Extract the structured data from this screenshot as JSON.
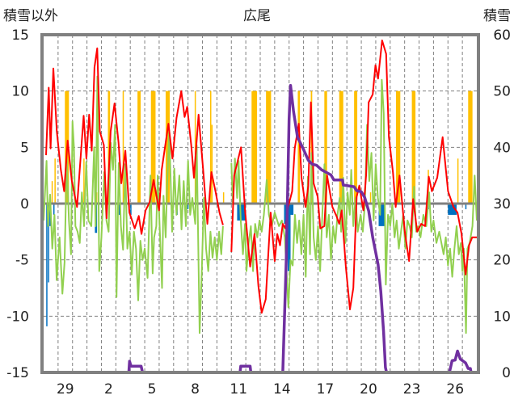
{
  "chart_data": {
    "type": "line",
    "title": "広尾",
    "ylabel_left": "積雪以外",
    "ylabel_right": "積雪",
    "ylim_left": [
      -15,
      15
    ],
    "ylim_right": [
      0,
      60
    ],
    "yticks_left": [
      "15",
      "10",
      "5",
      "0",
      "-5",
      "-10",
      "-15"
    ],
    "yticks_right": [
      "60",
      "50",
      "40",
      "30",
      "20",
      "10",
      "0"
    ],
    "x_range_days": [
      0,
      30
    ],
    "xticks": [
      {
        "label": "29",
        "day": 1.5
      },
      {
        "label": "2",
        "day": 4.5
      },
      {
        "label": "5",
        "day": 7.5
      },
      {
        "label": "8",
        "day": 10.5
      },
      {
        "label": "11",
        "day": 13.5
      },
      {
        "label": "14",
        "day": 16.5
      },
      {
        "label": "17",
        "day": 19.5
      },
      {
        "label": "20",
        "day": 22.5
      },
      {
        "label": "23",
        "day": 25.5
      },
      {
        "label": "26",
        "day": 28.5
      }
    ],
    "grid": true,
    "colors": {
      "temp": "#ff0000",
      "green": "#92d050",
      "snow": "#7030a0",
      "sun": "#ffc000",
      "precip": "#0070c0",
      "frame": "#808080"
    },
    "series_red": [
      [
        0.17,
        4.3
      ],
      [
        0.35,
        10.3
      ],
      [
        0.48,
        4.9
      ],
      [
        0.67,
        12
      ],
      [
        0.91,
        6.4
      ],
      [
        1.19,
        3
      ],
      [
        1.42,
        1.1
      ],
      [
        1.66,
        5.6
      ],
      [
        1.94,
        2.1
      ],
      [
        2.31,
        -0.3
      ],
      [
        2.77,
        7.8
      ],
      [
        2.96,
        4
      ],
      [
        3.15,
        7.9
      ],
      [
        3.33,
        4.7
      ],
      [
        3.52,
        12.1
      ],
      [
        3.71,
        13.8
      ],
      [
        3.89,
        6.4
      ],
      [
        4.17,
        5.2
      ],
      [
        4.36,
        -1.3
      ],
      [
        4.64,
        6.4
      ],
      [
        4.91,
        8.9
      ],
      [
        5.19,
        5.4
      ],
      [
        5.38,
        1.8
      ],
      [
        5.66,
        4.7
      ],
      [
        5.94,
        -0.8
      ],
      [
        6.31,
        -2.2
      ],
      [
        6.59,
        -1.1
      ],
      [
        6.78,
        -2.7
      ],
      [
        7.06,
        -0.6
      ],
      [
        7.34,
        0.1
      ],
      [
        7.62,
        2.1
      ],
      [
        7.99,
        -0.6
      ],
      [
        8.18,
        3
      ],
      [
        8.64,
        7.1
      ],
      [
        8.92,
        4
      ],
      [
        9.2,
        7.6
      ],
      [
        9.53,
        10
      ],
      [
        9.76,
        7.7
      ],
      [
        9.94,
        8.6
      ],
      [
        10.22,
        5.2
      ],
      [
        10.41,
        2.3
      ],
      [
        10.73,
        7.9
      ],
      [
        11.06,
        2.8
      ],
      [
        11.34,
        -1.8
      ],
      [
        11.62,
        2.8
      ],
      [
        11.9,
        1.1
      ],
      [
        12.18,
        -0.8
      ],
      [
        12.42,
        -1.9
      ],
      null,
      [
        13.0,
        -4.3
      ],
      [
        13.2,
        2.5
      ],
      [
        13.67,
        5
      ],
      [
        13.95,
        -0.6
      ],
      [
        14.3,
        -5.6
      ],
      [
        14.6,
        -2.7
      ],
      [
        14.87,
        -7.3
      ],
      [
        15.1,
        -9.7
      ],
      [
        15.38,
        -8.5
      ],
      [
        15.72,
        -0.8
      ],
      [
        16.0,
        -5.1
      ],
      [
        16.18,
        -2.7
      ],
      [
        16.37,
        -3.7
      ],
      [
        16.56,
        -1.8
      ],
      [
        16.74,
        -2.2
      ],
      [
        16.93,
        -0.3
      ],
      [
        17.21,
        1.1
      ],
      [
        17.39,
        4.9
      ],
      [
        17.67,
        7.1
      ],
      [
        17.86,
        2.3
      ],
      [
        18.14,
        -0.3
      ],
      [
        18.33,
        1.6
      ],
      [
        18.51,
        9
      ],
      [
        18.7,
        1.8
      ],
      [
        18.98,
        0.6
      ],
      [
        19.16,
        -2.2
      ],
      [
        19.44,
        -2
      ],
      [
        19.63,
        2.5
      ],
      [
        20.0,
        -0.3
      ],
      [
        20.28,
        -1.1
      ],
      [
        20.47,
        -1.8
      ],
      [
        20.65,
        -0.6
      ],
      [
        20.93,
        -5.6
      ],
      [
        21.21,
        -9.4
      ],
      [
        21.45,
        -7.5
      ],
      [
        21.68,
        0.6
      ],
      [
        21.86,
        1.6
      ],
      [
        22.14,
        -0.6
      ],
      [
        22.33,
        2.5
      ],
      [
        22.51,
        9
      ],
      [
        22.79,
        9.7
      ],
      [
        22.98,
        12.3
      ],
      [
        23.16,
        11.1
      ],
      [
        23.44,
        14.5
      ],
      [
        23.72,
        13.3
      ],
      [
        23.91,
        5.9
      ],
      [
        24.19,
        2.8
      ],
      [
        24.38,
        -0.3
      ],
      [
        24.65,
        2.5
      ],
      [
        24.84,
        -0.1
      ],
      [
        25.03,
        -2.7
      ],
      [
        25.31,
        -5.1
      ],
      [
        25.59,
        0.4
      ],
      [
        25.87,
        -2.5
      ],
      [
        26.15,
        -1.8
      ],
      [
        26.42,
        -2
      ],
      [
        26.67,
        2.4
      ],
      [
        26.89,
        1.1
      ],
      [
        27.26,
        2.3
      ],
      [
        27.63,
        5.9
      ],
      [
        28.01,
        1.1
      ],
      [
        28.38,
        -0.3
      ],
      [
        28.66,
        -0.8
      ],
      [
        28.94,
        -2.7
      ],
      [
        29.22,
        -6.3
      ],
      [
        29.46,
        -3.7
      ],
      [
        29.68,
        -3
      ],
      [
        30.0,
        -3
      ]
    ],
    "series_green": [
      [
        0,
        -1.5
      ],
      [
        0.2,
        3.8
      ],
      [
        0.3,
        -2
      ],
      [
        0.45,
        0.8
      ],
      [
        0.6,
        -4
      ],
      [
        0.75,
        -1
      ],
      [
        0.9,
        -6.8
      ],
      [
        1.1,
        -3
      ],
      [
        1.3,
        -8
      ],
      [
        1.45,
        -5.2
      ],
      [
        1.6,
        4
      ],
      [
        1.75,
        -1.5
      ],
      [
        1.9,
        -4.5
      ],
      [
        2.0,
        7.3
      ],
      [
        2.1,
        5
      ],
      [
        2.2,
        -2
      ],
      [
        2.35,
        -2.5
      ],
      [
        2.5,
        -3.5
      ],
      [
        2.65,
        1
      ],
      [
        2.8,
        -2
      ],
      [
        2.95,
        3.7
      ],
      [
        3.1,
        -1.5
      ],
      [
        3.3,
        -2
      ],
      [
        3.5,
        5
      ],
      [
        3.6,
        -2
      ],
      [
        3.72,
        11.3
      ],
      [
        3.85,
        -6
      ],
      [
        4.0,
        -3
      ],
      [
        4.2,
        2.8
      ],
      [
        4.35,
        -1.5
      ],
      [
        4.5,
        -2.5
      ],
      [
        4.65,
        5.4
      ],
      [
        4.8,
        3
      ],
      [
        4.95,
        7
      ],
      [
        5.05,
        -8.3
      ],
      [
        5.2,
        3.6
      ],
      [
        5.35,
        -2
      ],
      [
        5.5,
        -4.1
      ],
      [
        5.65,
        3.5
      ],
      [
        5.8,
        -4
      ],
      [
        5.95,
        -2.5
      ],
      [
        6.1,
        -6.3
      ],
      [
        6.25,
        -2.5
      ],
      [
        6.4,
        -4
      ],
      [
        6.55,
        -8.6
      ],
      [
        6.7,
        -3.3
      ],
      [
        6.85,
        -5
      ],
      [
        7.0,
        -4
      ],
      [
        7.2,
        -6.6
      ],
      [
        7.4,
        2.5
      ],
      [
        7.55,
        -6.2
      ],
      [
        7.65,
        -3
      ],
      [
        7.8,
        -2
      ],
      [
        7.9,
        2.5
      ],
      [
        8.05,
        -2.5
      ],
      [
        8.2,
        -7.5
      ],
      [
        8.3,
        0.7
      ],
      [
        8.45,
        -3
      ],
      [
        8.55,
        1.6
      ],
      [
        8.7,
        6.5
      ],
      [
        8.9,
        -2.5
      ],
      [
        9.05,
        3.1
      ],
      [
        9.2,
        -1
      ],
      [
        9.4,
        2.5
      ],
      [
        9.55,
        -2.3
      ],
      [
        9.7,
        2
      ],
      [
        9.85,
        -2
      ],
      [
        10.0,
        3.8
      ],
      [
        10.15,
        -1
      ],
      [
        10.3,
        0.5
      ],
      [
        10.5,
        -1.8
      ],
      [
        10.6,
        5.2
      ],
      [
        10.8,
        -11.5
      ],
      [
        10.95,
        -6.2
      ],
      [
        11.1,
        0.5
      ],
      [
        11.25,
        -4
      ],
      [
        11.4,
        -6
      ],
      [
        11.55,
        -2.5
      ],
      [
        11.7,
        -4.8
      ],
      [
        11.85,
        -3
      ],
      [
        12.0,
        -5
      ],
      [
        12.15,
        -2.5
      ],
      [
        12.3,
        -4.5
      ],
      [
        12.42,
        -2
      ],
      null,
      [
        13.0,
        3.6
      ],
      [
        13.1,
        0
      ],
      [
        13.25,
        4
      ],
      [
        13.4,
        0.5
      ],
      [
        13.5,
        3.8
      ],
      [
        13.65,
        -1.5
      ],
      [
        13.8,
        -4.5
      ],
      [
        13.95,
        -1.8
      ],
      [
        14.05,
        -6
      ],
      [
        14.2,
        -3.5
      ],
      [
        14.35,
        -2
      ],
      [
        14.5,
        -6
      ],
      [
        14.65,
        -1.8
      ],
      [
        14.8,
        -3
      ],
      [
        14.95,
        -1.5
      ],
      [
        15.1,
        -2.5
      ],
      [
        15.25,
        -1
      ],
      [
        15.45,
        2.1
      ],
      [
        15.6,
        -1
      ],
      [
        15.8,
        -2
      ],
      [
        16.0,
        -0.8
      ],
      [
        16.3,
        -2
      ],
      [
        16.5,
        -1.5
      ],
      [
        16.7,
        -3
      ],
      [
        16.95,
        -9.2
      ],
      [
        17.1,
        -5
      ],
      [
        17.25,
        -5.5
      ],
      [
        17.4,
        -1
      ],
      [
        17.55,
        -3.5
      ],
      [
        17.7,
        -1.5
      ],
      [
        17.85,
        -4.5
      ],
      [
        18.0,
        -1
      ],
      [
        18.15,
        -6.5
      ],
      [
        18.3,
        2.4
      ],
      [
        18.45,
        -4.5
      ],
      [
        18.55,
        4.5
      ],
      [
        18.7,
        -3
      ],
      [
        18.85,
        -5
      ],
      [
        19.0,
        -2
      ],
      [
        19.15,
        -6
      ],
      [
        19.3,
        -1
      ],
      [
        19.45,
        3.5
      ],
      [
        19.6,
        -3
      ],
      [
        19.75,
        -1
      ],
      [
        19.9,
        -5
      ],
      [
        20.05,
        -2
      ],
      [
        20.2,
        -3.5
      ],
      [
        20.35,
        -1
      ],
      [
        20.5,
        0.5
      ],
      [
        20.6,
        -2.5
      ],
      [
        20.75,
        2.3
      ],
      [
        20.9,
        -3.5
      ],
      [
        21.05,
        1
      ],
      [
        21.2,
        -1
      ],
      [
        21.3,
        3
      ],
      [
        21.45,
        -2
      ],
      [
        21.6,
        0.5
      ],
      [
        21.75,
        -2.5
      ],
      [
        21.95,
        -1
      ],
      [
        22.1,
        -2.5
      ],
      [
        22.25,
        0
      ],
      [
        22.4,
        7
      ],
      [
        22.55,
        2
      ],
      [
        22.7,
        4.5
      ],
      [
        22.85,
        -1.5
      ],
      [
        23.0,
        3.5
      ],
      [
        23.15,
        0.5
      ],
      [
        23.3,
        -1
      ],
      [
        23.42,
        11
      ],
      [
        23.55,
        8
      ],
      [
        23.7,
        -7.2
      ],
      [
        23.85,
        -1
      ],
      [
        24.0,
        -2
      ],
      [
        24.15,
        0
      ],
      [
        24.3,
        -3
      ],
      [
        24.45,
        -1.5
      ],
      [
        24.6,
        -4
      ],
      [
        24.75,
        -2.5
      ],
      [
        24.9,
        -1
      ],
      [
        25.05,
        -4
      ],
      [
        25.2,
        -1.5
      ],
      [
        25.35,
        -2
      ],
      [
        25.5,
        -3
      ],
      [
        25.65,
        1.5
      ],
      [
        25.8,
        -2.5
      ],
      [
        25.95,
        -2
      ],
      [
        26.1,
        -3
      ],
      [
        26.3,
        -1
      ],
      [
        26.5,
        -2
      ],
      [
        26.7,
        1
      ],
      [
        26.85,
        -2.5
      ],
      [
        27.0,
        -1.5
      ],
      [
        27.2,
        -3.5
      ],
      [
        27.4,
        -2.5
      ],
      [
        27.55,
        -3.5
      ],
      [
        27.7,
        -4.5
      ],
      [
        27.85,
        -3
      ],
      [
        28.0,
        -5.5
      ],
      [
        28.15,
        -4
      ],
      [
        28.3,
        -6.5
      ],
      [
        28.45,
        -4
      ],
      [
        28.6,
        -2
      ],
      [
        28.75,
        -4.5
      ],
      [
        28.9,
        -3.5
      ],
      [
        29.0,
        -6
      ],
      [
        29.1,
        -4
      ],
      [
        29.25,
        -11.5
      ],
      [
        29.35,
        -4
      ],
      [
        29.5,
        -3.5
      ],
      [
        29.7,
        -2
      ],
      [
        29.85,
        2.5
      ],
      [
        30.0,
        -1.5
      ]
    ],
    "series_snow_right_axis": [
      [
        0,
        0
      ],
      [
        5.9,
        0
      ],
      [
        5.95,
        2
      ],
      [
        6.05,
        1.1
      ],
      [
        6.75,
        1.1
      ],
      [
        6.85,
        0
      ],
      [
        12.4,
        0
      ],
      null,
      [
        13.0,
        0
      ],
      [
        13.6,
        0
      ],
      [
        13.65,
        1.1
      ],
      [
        14.3,
        1.1
      ],
      [
        14.35,
        0
      ],
      [
        16.56,
        0
      ],
      [
        16.8,
        20
      ],
      [
        17.0,
        45
      ],
      [
        17.1,
        51
      ],
      [
        17.3,
        46.5
      ],
      [
        17.58,
        41.8
      ],
      [
        17.95,
        39.9
      ],
      [
        18.33,
        37.7
      ],
      [
        18.6,
        37
      ],
      [
        18.9,
        36.8
      ],
      [
        19.25,
        36
      ],
      [
        19.9,
        35.1
      ],
      [
        20.1,
        34.2
      ],
      [
        20.7,
        34.2
      ],
      [
        20.75,
        33.3
      ],
      [
        21.5,
        33
      ],
      [
        21.68,
        32.3
      ],
      [
        22.0,
        32.1
      ],
      [
        22.23,
        31.1
      ],
      [
        22.51,
        28.7
      ],
      [
        22.79,
        24
      ],
      [
        23.16,
        19.2
      ],
      [
        23.35,
        14.4
      ],
      [
        23.54,
        7.3
      ],
      [
        23.67,
        0.9
      ],
      [
        23.75,
        0
      ],
      [
        28.1,
        0
      ],
      [
        28.29,
        2.1
      ],
      [
        28.5,
        2.2
      ],
      [
        28.66,
        3.8
      ],
      [
        28.85,
        2.4
      ],
      [
        29.22,
        1.7
      ],
      [
        29.4,
        0.7
      ],
      [
        29.55,
        0.7
      ],
      [
        29.6,
        0
      ],
      [
        30,
        0
      ]
    ],
    "bars_sun": [
      [
        0.55,
        0.06,
        2
      ],
      [
        0.75,
        0.06,
        4
      ],
      [
        1.47,
        0.28,
        10
      ],
      [
        2.75,
        0.05,
        4
      ],
      [
        3.63,
        0.05,
        1
      ],
      [
        4.45,
        0.15,
        10
      ],
      [
        5.47,
        0.06,
        10
      ],
      [
        6.5,
        0.22,
        10
      ],
      [
        7.43,
        0.32,
        10
      ],
      [
        8.45,
        0.28,
        10
      ],
      [
        10.46,
        0.06,
        10
      ],
      [
        11.53,
        0.06,
        10
      ],
      [
        11.62,
        0.05,
        7
      ],
      [
        12.42,
        0.05,
        1
      ],
      [
        14.4,
        0.38,
        10
      ],
      [
        15.4,
        0.35,
        10
      ],
      [
        17.6,
        0.15,
        10
      ],
      [
        18.5,
        0.1,
        10
      ],
      [
        19.44,
        0.19,
        10
      ],
      [
        20.47,
        0.28,
        10
      ],
      [
        21.5,
        0.22,
        10
      ],
      [
        22.6,
        0.05,
        1
      ],
      [
        24.4,
        0.3,
        10
      ],
      [
        25.5,
        0.25,
        10
      ],
      [
        26.6,
        0.05,
        3
      ],
      [
        28.65,
        0.05,
        4
      ],
      [
        29.4,
        0.3,
        10
      ]
    ],
    "bars_precip": [
      [
        0.18,
        0.08,
        -10.9
      ],
      [
        0.3,
        0.08,
        -7
      ],
      [
        0.4,
        0.05,
        -2
      ],
      [
        0.67,
        0.05,
        -1
      ],
      [
        3.55,
        0.15,
        -2.6
      ],
      [
        5.2,
        0.08,
        -1
      ],
      [
        6.0,
        0.08,
        -1
      ],
      [
        9.2,
        0.08,
        -1
      ],
      [
        9.95,
        0.05,
        -0.5
      ],
      [
        13.4,
        0.6,
        -1.5
      ],
      [
        16.65,
        0.25,
        -1.8
      ],
      [
        16.9,
        0.2,
        -6
      ],
      [
        17.1,
        0.2,
        -1
      ],
      [
        23.2,
        0.4,
        -2
      ],
      [
        26.6,
        0.08,
        -0.5
      ],
      [
        28.0,
        0.6,
        -1
      ],
      [
        29.2,
        0.06,
        -0.5
      ]
    ]
  }
}
